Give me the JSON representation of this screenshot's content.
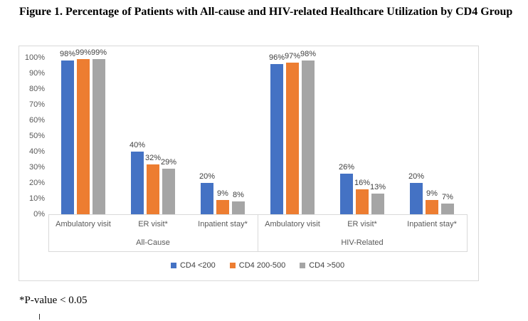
{
  "page": {
    "title": "Figure 1. Percentage of Patients with All-cause and HIV-related Healthcare Utilization by CD4 Group",
    "footnote": "*P-value < 0.05"
  },
  "chart_data": {
    "type": "bar",
    "title": "Figure 1. Percentage of Patients with All-cause and HIV-related Healthcare Utilization by CD4 Group",
    "xlabel": "",
    "ylabel": "",
    "y_axis": {
      "min": 0,
      "max": 100,
      "step": 10,
      "tick_suffix": "%"
    },
    "ylim": [
      0,
      100
    ],
    "grid": false,
    "legend_position": "bottom",
    "data_label_suffix": "%",
    "groups": [
      {
        "label": "All-Cause",
        "categories": [
          "Ambulatory visit",
          "ER visit*",
          "Inpatient stay*"
        ]
      },
      {
        "label": "HIV-Related",
        "categories": [
          "Ambulatory visit",
          "ER visit*",
          "Inpatient stay*"
        ]
      }
    ],
    "series": [
      {
        "name": "CD4 <200",
        "color": "#4472C4",
        "values": [
          98,
          40,
          20,
          96,
          26,
          20
        ]
      },
      {
        "name": "CD4 200-500",
        "color": "#ED7D31",
        "values": [
          99,
          32,
          9,
          97,
          16,
          9
        ]
      },
      {
        "name": "CD4 >500",
        "color": "#A5A5A5",
        "values": [
          99,
          29,
          8,
          98,
          13,
          7
        ]
      }
    ]
  }
}
